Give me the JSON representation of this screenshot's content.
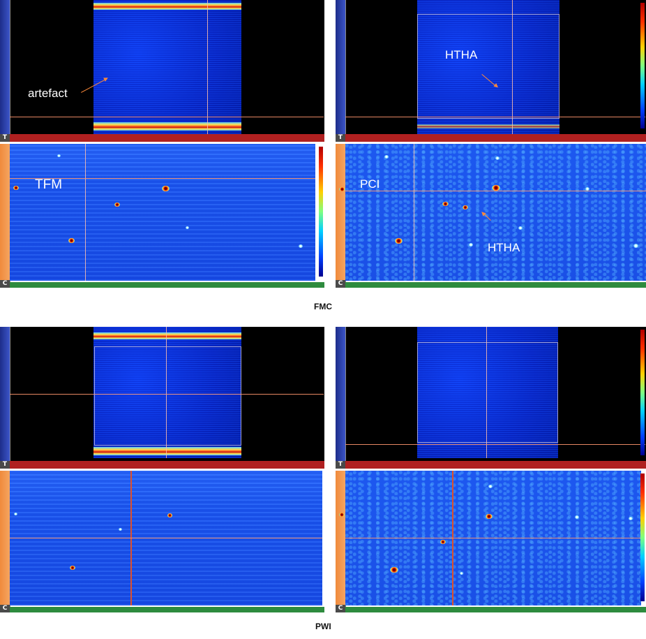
{
  "fmc": {
    "caption": "FMC",
    "labels": {
      "artefact": "artefact",
      "htha_top": "HTHA",
      "tfm": "TFM",
      "pci": "PCI",
      "htha_bottom": "HTHA"
    }
  },
  "pwi": {
    "caption": "PWI"
  },
  "corners": {
    "top": "T",
    "bottom": "C"
  },
  "colors": {
    "scan_blue": "#1b4fe8",
    "ruler_blue": "#1d2d8a",
    "ruler_red": "#b02020",
    "ruler_orange": "#f08a3c",
    "ruler_green": "#2e8b3e",
    "annotation_arrow": "#ff8a3a"
  }
}
